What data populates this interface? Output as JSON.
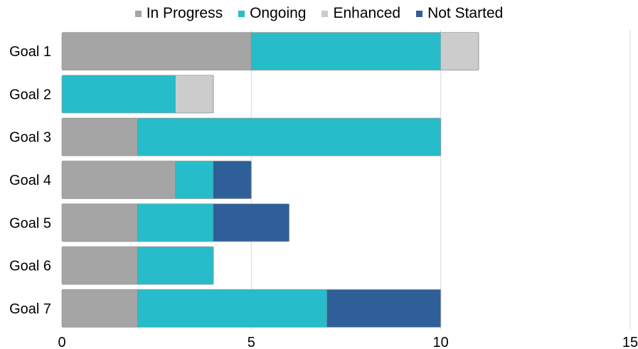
{
  "chart_data": {
    "type": "bar",
    "orientation": "horizontal",
    "stacked": true,
    "categories": [
      "Goal 1",
      "Goal 2",
      "Goal 3",
      "Goal 4",
      "Goal 5",
      "Goal 6",
      "Goal 7"
    ],
    "series": [
      {
        "name": "In Progress",
        "color": "#A5A5A5",
        "values": [
          5,
          0,
          2,
          3,
          2,
          2,
          2
        ]
      },
      {
        "name": "Ongoing",
        "color": "#26BCC9",
        "values": [
          5,
          3,
          8,
          1,
          2,
          2,
          5
        ]
      },
      {
        "name": "Enhanced",
        "color": "#CCCCCC",
        "values": [
          1,
          1,
          0,
          0,
          0,
          0,
          0
        ]
      },
      {
        "name": "Not Started",
        "color": "#2F5F98",
        "values": [
          0,
          0,
          0,
          1,
          2,
          0,
          3
        ]
      }
    ],
    "xlim": [
      0,
      15
    ],
    "xticks": [
      0,
      5,
      10,
      15
    ],
    "title": "",
    "xlabel": "",
    "ylabel": "",
    "grid": true,
    "legend_position": "top"
  }
}
